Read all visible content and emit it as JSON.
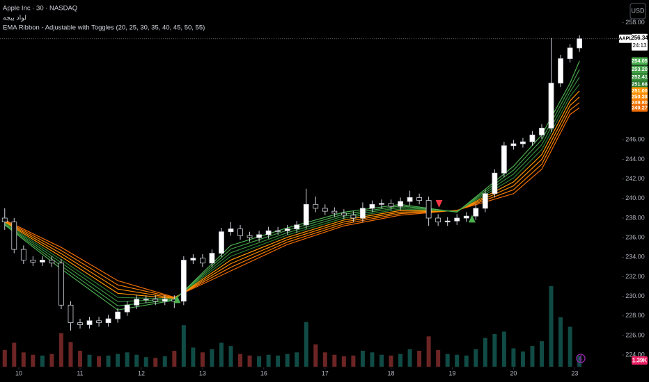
{
  "chart_data": {
    "type": "candlestick",
    "title": "Apple Inc · 30 · NASDAQ",
    "subtitle": "لواد بيجه",
    "indicator": "EMA Ribbon - Adjustable with Toggles (20, 25, 30, 35, 40, 45, 50, 55)",
    "currency": "USD",
    "symbol_label": "AAPL",
    "countdown": "24:13",
    "xlim": [
      -0.5,
      65.5
    ],
    "xticks": [
      {
        "value": 1.5,
        "label": "10"
      },
      {
        "value": 8,
        "label": "11"
      },
      {
        "value": 14.5,
        "label": "12"
      },
      {
        "value": 21,
        "label": "13"
      },
      {
        "value": 27.5,
        "label": "16"
      },
      {
        "value": 34,
        "label": "17"
      },
      {
        "value": 41,
        "label": "18"
      },
      {
        "value": 47.5,
        "label": "19"
      },
      {
        "value": 54,
        "label": "20"
      },
      {
        "value": 60.5,
        "label": "23"
      }
    ],
    "ylim": [
      222.8,
      260.3
    ],
    "yticks": [
      {
        "value": 224,
        "label": "224.00"
      },
      {
        "value": 226,
        "label": "226.00"
      },
      {
        "value": 228,
        "label": "228.00"
      },
      {
        "value": 230,
        "label": "230.00"
      },
      {
        "value": 232,
        "label": "232.00"
      },
      {
        "value": 234,
        "label": "234.00"
      },
      {
        "value": 236,
        "label": "236.00"
      },
      {
        "value": 238,
        "label": "238.00"
      },
      {
        "value": 240,
        "label": "240.00"
      },
      {
        "value": 242,
        "label": "242.00"
      },
      {
        "value": 244,
        "label": "244.00"
      },
      {
        "value": 246,
        "label": "246.00"
      },
      {
        "value": 258,
        "label": "258.00"
      }
    ],
    "grid": false,
    "candles": {
      "up_color": "#ffffff",
      "down_color": "#000000",
      "wick_color": "#d1d4dc",
      "open": [
        238.0,
        237.6,
        234.8,
        233.7,
        233.5,
        233.7,
        233.4,
        229.1,
        227.3,
        227.1,
        227.5,
        227.3,
        227.7,
        228.4,
        229.1,
        229.7,
        229.7,
        229.5,
        229.7,
        229.5,
        233.7,
        233.9,
        233.4,
        234.4,
        236.6,
        236.9,
        236.2,
        236.0,
        236.3,
        236.7,
        236.7,
        236.9,
        237.3,
        239.4,
        239.0,
        238.7,
        238.5,
        238.3,
        238.0,
        239.0,
        239.4,
        239.5,
        239.2,
        239.7,
        240.1,
        239.8,
        238.0,
        237.6,
        237.7,
        238.0,
        238.2,
        239.0,
        240.5,
        242.6,
        245.4,
        245.6,
        245.8,
        246.5,
        247.2,
        251.8,
        254.3,
        255.4
      ],
      "high": [
        239.0,
        238.0,
        235.2,
        234.1,
        234.1,
        234.1,
        233.8,
        229.5,
        227.7,
        227.9,
        227.9,
        228.1,
        228.8,
        229.5,
        230.1,
        230.1,
        230.1,
        230.1,
        230.1,
        234.1,
        234.3,
        234.3,
        234.8,
        237.0,
        237.6,
        237.3,
        236.6,
        236.7,
        237.1,
        237.1,
        237.3,
        237.7,
        241.0,
        240.2,
        239.4,
        239.1,
        238.9,
        238.7,
        239.6,
        239.8,
        239.9,
        239.9,
        240.1,
        240.8,
        240.5,
        240.2,
        238.4,
        238.1,
        238.4,
        238.6,
        239.4,
        240.9,
        243.0,
        245.8,
        246.0,
        246.2,
        246.9,
        247.6,
        256.4,
        254.7,
        255.8,
        256.7
      ],
      "low": [
        236.8,
        234.4,
        233.3,
        233.1,
        233.1,
        233.0,
        228.7,
        226.5,
        226.7,
        226.7,
        226.9,
        226.9,
        227.3,
        228.0,
        228.7,
        229.3,
        229.1,
        229.1,
        228.8,
        229.1,
        233.3,
        233.0,
        233.0,
        234.0,
        236.2,
        235.8,
        235.6,
        235.6,
        235.9,
        236.3,
        236.3,
        236.5,
        236.9,
        238.6,
        238.3,
        238.1,
        237.9,
        237.6,
        237.6,
        238.6,
        239.0,
        238.8,
        238.8,
        239.3,
        239.4,
        237.2,
        237.2,
        237.2,
        237.3,
        237.6,
        237.8,
        238.6,
        240.1,
        242.2,
        245.0,
        245.2,
        245.4,
        246.1,
        246.8,
        251.4,
        253.9,
        255.0
      ],
      "close": [
        237.6,
        234.8,
        233.7,
        233.5,
        233.7,
        233.4,
        229.1,
        227.3,
        227.1,
        227.5,
        227.3,
        227.7,
        228.4,
        229.1,
        229.7,
        229.7,
        229.5,
        229.7,
        229.5,
        233.7,
        233.9,
        233.4,
        234.4,
        236.6,
        236.9,
        236.2,
        236.0,
        236.3,
        236.7,
        236.7,
        236.9,
        237.3,
        239.4,
        239.0,
        238.7,
        238.5,
        238.3,
        238.0,
        239.0,
        239.4,
        239.5,
        239.2,
        239.7,
        240.1,
        239.8,
        238.0,
        237.6,
        237.7,
        238.0,
        238.2,
        239.0,
        240.5,
        242.6,
        245.4,
        245.6,
        245.8,
        246.5,
        247.2,
        251.8,
        254.3,
        255.4,
        256.34
      ]
    },
    "volume": {
      "up_color": "#26a69a",
      "down_color": "#ef5350",
      "label_color": "#e91e63",
      "vlim": [
        0,
        12
      ],
      "values": [
        2.1,
        3.0,
        1.8,
        1.5,
        1.4,
        1.6,
        4.2,
        3.1,
        2.0,
        1.5,
        1.3,
        1.4,
        1.6,
        1.8,
        1.5,
        1.2,
        1.1,
        1.3,
        2.0,
        5.2,
        2.4,
        1.8,
        2.2,
        3.0,
        2.6,
        1.6,
        1.4,
        1.3,
        1.5,
        1.4,
        1.6,
        1.8,
        5.6,
        2.8,
        1.8,
        1.5,
        1.3,
        1.4,
        2.0,
        1.8,
        1.5,
        1.4,
        1.6,
        2.2,
        2.0,
        3.8,
        2.1,
        1.6,
        1.5,
        1.4,
        2.2,
        3.6,
        4.1,
        4.4,
        2.3,
        1.9,
        2.6,
        3.2,
        10.1,
        6.2,
        5.0,
        1.39
      ],
      "value_labels": [
        null,
        null,
        null,
        null,
        null,
        null,
        null,
        null,
        null,
        null,
        null,
        null,
        null,
        null,
        null,
        null,
        null,
        null,
        null,
        null,
        null,
        null,
        null,
        null,
        null,
        null,
        null,
        null,
        null,
        null,
        null,
        null,
        null,
        null,
        null,
        null,
        null,
        null,
        null,
        null,
        null,
        null,
        null,
        null,
        null,
        null,
        null,
        null,
        null,
        null,
        null,
        null,
        null,
        null,
        null,
        null,
        null,
        null,
        null,
        null,
        null,
        "1.39K"
      ]
    },
    "ribbon_x": [
      0,
      6,
      12,
      18,
      24,
      30,
      36,
      42,
      48,
      54,
      57,
      60,
      61
    ],
    "series": [
      {
        "color": "#4caf50",
        "values": [
          237.3,
          232.8,
          228.6,
          229.6,
          235.2,
          237.0,
          238.6,
          239.4,
          238.6,
          243.3,
          246.5,
          251.8,
          254.05
        ],
        "value_labels": [
          null,
          null,
          null,
          null,
          null,
          null,
          null,
          null,
          null,
          null,
          null,
          null,
          "254.05"
        ]
      },
      {
        "color": "#43a047",
        "values": [
          237.37,
          233.11,
          229.03,
          229.64,
          234.83,
          236.76,
          238.4,
          239.24,
          238.63,
          242.9,
          246.0,
          251.34,
          253.2
        ],
        "value_labels": [
          null,
          null,
          null,
          null,
          null,
          null,
          null,
          null,
          null,
          null,
          null,
          null,
          "253.20"
        ]
      },
      {
        "color": "#388e3c",
        "values": [
          237.44,
          233.43,
          229.46,
          229.69,
          234.46,
          236.51,
          238.2,
          239.09,
          238.66,
          242.5,
          245.5,
          250.89,
          252.41
        ],
        "value_labels": [
          null,
          null,
          null,
          null,
          null,
          null,
          null,
          null,
          null,
          null,
          null,
          null,
          "252.41"
        ]
      },
      {
        "color": "#2e7d32",
        "values": [
          237.51,
          233.74,
          229.89,
          229.73,
          234.09,
          236.27,
          238.0,
          238.93,
          238.69,
          242.1,
          245.0,
          250.43,
          251.68
        ],
        "value_labels": [
          null,
          null,
          null,
          null,
          null,
          null,
          null,
          null,
          null,
          null,
          null,
          null,
          "251.68"
        ]
      },
      {
        "color": "#ff9800",
        "values": [
          237.59,
          234.06,
          230.31,
          229.77,
          233.71,
          236.03,
          237.8,
          238.77,
          238.71,
          241.7,
          244.5,
          249.97,
          251.0
        ],
        "value_labels": [
          null,
          null,
          null,
          null,
          null,
          null,
          null,
          null,
          null,
          null,
          null,
          null,
          "251.00"
        ]
      },
      {
        "color": "#fb8c00",
        "values": [
          237.66,
          234.37,
          230.74,
          229.81,
          233.34,
          235.79,
          237.6,
          238.61,
          238.74,
          241.3,
          244.0,
          249.51,
          250.38
        ],
        "value_labels": [
          null,
          null,
          null,
          null,
          null,
          null,
          null,
          null,
          null,
          null,
          null,
          null,
          "250.38"
        ]
      },
      {
        "color": "#f57c00",
        "values": [
          237.73,
          234.69,
          231.17,
          229.86,
          232.97,
          235.54,
          237.4,
          238.46,
          238.77,
          240.9,
          243.5,
          249.06,
          249.8
        ],
        "value_labels": [
          null,
          null,
          null,
          null,
          null,
          null,
          null,
          null,
          null,
          null,
          null,
          null,
          "249.80"
        ]
      },
      {
        "color": "#ef6c00",
        "values": [
          237.8,
          235.0,
          231.6,
          229.9,
          232.6,
          235.3,
          237.2,
          238.3,
          238.8,
          240.5,
          243.0,
          248.6,
          249.27
        ],
        "value_labels": [
          null,
          null,
          null,
          null,
          null,
          null,
          null,
          null,
          null,
          null,
          null,
          null,
          "249.27"
        ]
      }
    ],
    "signals": [
      {
        "x": 18.3,
        "y": 229.66,
        "direction": "up",
        "color": "#4caf50"
      },
      {
        "x": 46.1,
        "y": 239.5,
        "direction": "down",
        "color": "#f23645"
      },
      {
        "x": 49.6,
        "y": 237.9,
        "direction": "up",
        "color": "#4caf50"
      }
    ]
  }
}
